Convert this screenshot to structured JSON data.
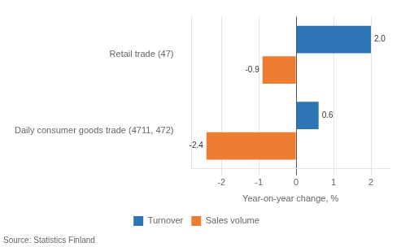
{
  "chart_data": {
    "type": "bar",
    "orientation": "horizontal",
    "categories": [
      "Retail trade (47)",
      "Daily consumer goods trade (4711, 472)"
    ],
    "series": [
      {
        "name": "Turnover",
        "color": "#2E75B6",
        "values": [
          2.0,
          0.6
        ],
        "value_labels": [
          "2.0",
          "0.6"
        ]
      },
      {
        "name": "Sales volume",
        "color": "#ED7D31",
        "values": [
          -0.9,
          -2.4
        ],
        "value_labels": [
          "-0.9",
          "-2.4"
        ]
      }
    ],
    "xlabel": "Year-on-year change, %",
    "xlim": [
      -2.8,
      2.5
    ],
    "xticks": [
      -2,
      -1,
      0,
      1,
      2
    ],
    "grid": true,
    "legend": "bottom",
    "data_labels": true,
    "annotations": [
      "Source: Statistics Finland"
    ]
  }
}
